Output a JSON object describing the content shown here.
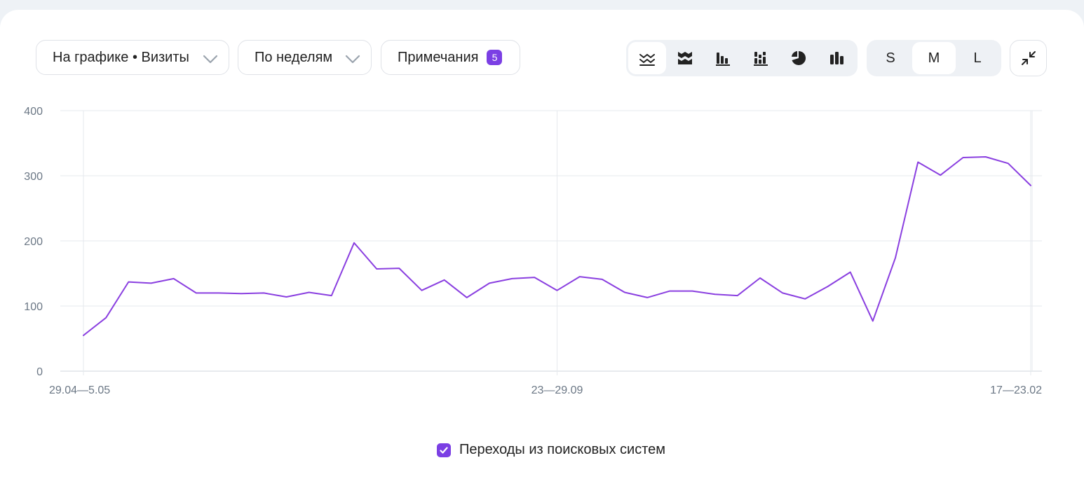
{
  "toolbar": {
    "metric_dropdown": "На графике • Визиты",
    "period_dropdown": "По неделям",
    "notes_label": "Примечания",
    "notes_count": "5",
    "chart_types": [
      "line-chart-icon",
      "stacked-area-icon",
      "bar-chart-icon",
      "stacked-bar-icon",
      "pie-chart-icon",
      "column-chart-icon"
    ],
    "active_chart_type": "line-chart-icon",
    "sizes": [
      "S",
      "M",
      "L"
    ],
    "active_size": "M"
  },
  "legend": {
    "label": "Переходы из поисковых систем",
    "checked": true
  },
  "colors": {
    "series": "#8a3fe0",
    "accent": "#7b3fe4"
  },
  "chart_data": {
    "type": "line",
    "x_tick_labels": [
      "29.04—5.05",
      "23—29.09",
      "17—23.02"
    ],
    "x_tick_indices": [
      0,
      21,
      42
    ],
    "y_ticks": [
      0,
      100,
      200,
      300,
      400
    ],
    "ylim": [
      0,
      400
    ],
    "grid": true,
    "legend_placement": "bottom-center",
    "series": [
      {
        "name": "Переходы из поисковых систем",
        "values": [
          55,
          82,
          137,
          135,
          142,
          120,
          120,
          119,
          120,
          114,
          121,
          116,
          197,
          157,
          158,
          124,
          140,
          113,
          135,
          142,
          144,
          124,
          145,
          141,
          121,
          113,
          123,
          123,
          118,
          116,
          143,
          120,
          111,
          130,
          152,
          77,
          174,
          321,
          301,
          328,
          329,
          319,
          285
        ]
      }
    ]
  }
}
